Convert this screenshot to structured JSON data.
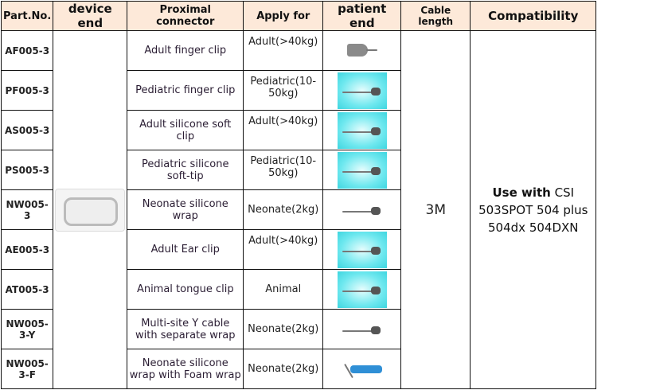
{
  "headers": [
    "Part.No.",
    "device end",
    "Proximal connector",
    "Apply for",
    "patient end",
    "Cable length",
    "Compatibility"
  ],
  "rows": [
    {
      "part": "AF005-3",
      "proximal": "Adult finger clip",
      "apply": "Adult(>40kg)",
      "img": "finger-clip-gray"
    },
    {
      "part": "PF005-3",
      "proximal": "Pediatric finger clip",
      "apply": "Pediatric(10-50kg)",
      "img": "cyan"
    },
    {
      "part": "AS005-3",
      "proximal": "Adult silicone soft clip",
      "apply": "Adult(>40kg)",
      "img": "cyan"
    },
    {
      "part": "PS005-3",
      "proximal": "Pediatric silicone soft-tip",
      "apply": "Pediatric(10-50kg)",
      "img": "cyan"
    },
    {
      "part": "NW005-3",
      "proximal": "Neonate silicone wrap",
      "apply": "Neonate(2kg)",
      "img": "white"
    },
    {
      "part": "AE005-3",
      "proximal": "Adult Ear clip",
      "apply": "Adult(>40kg)",
      "img": "cyan"
    },
    {
      "part": "AT005-3",
      "proximal": "Animal tongue clip",
      "apply": "Animal",
      "img": "cyan"
    },
    {
      "part": "NW005-3-Y",
      "proximal": "Multi-site Y cable with separate wrap",
      "apply": "Neonate(2kg)",
      "img": "white"
    },
    {
      "part": "NW005-3-F",
      "proximal": "Neonate silicone wrap with Foam wrap",
      "apply": "Neonate(2kg)",
      "img": "blue"
    }
  ],
  "cable_length": "3M",
  "compatibility": {
    "bold": "Use with",
    "rest": " CSI 503SPOT 504 plus 504dx 504DXN"
  }
}
